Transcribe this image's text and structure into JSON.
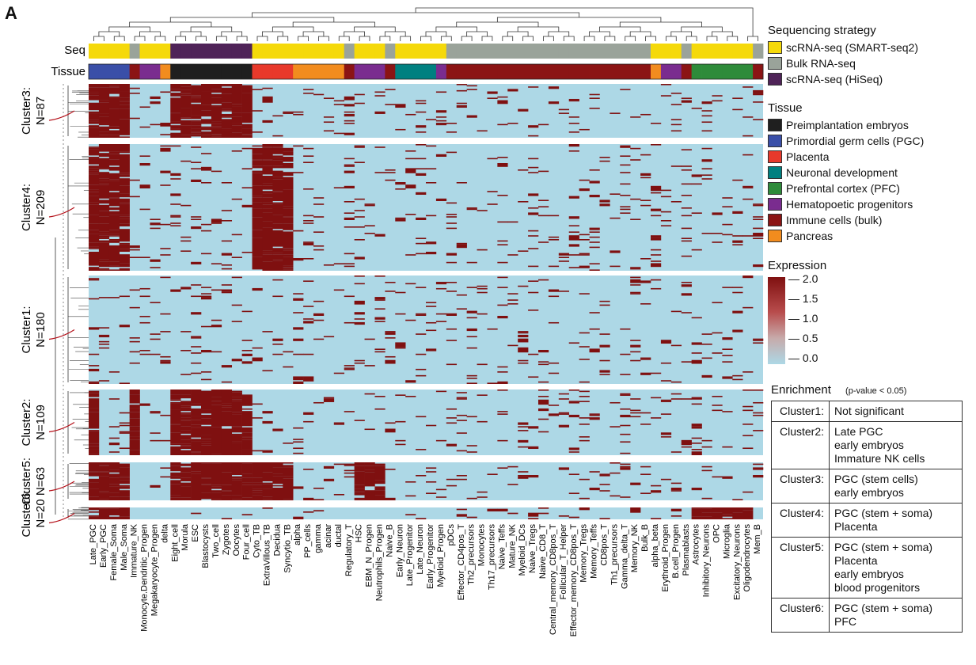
{
  "panel_label": "A",
  "annotation_labels": {
    "seq": "Seq",
    "tissue": "Tissue"
  },
  "colors": {
    "low": "#add8e6",
    "high": "#7f1010",
    "smart": "#f5d90a",
    "bulk": "#9aa39a",
    "hiseq": "#4f2358",
    "preimplantation": "#1f1f1f",
    "pgc": "#3a4fa8",
    "placenta": "#e8392b",
    "neuronal": "#008080",
    "pfc": "#2e8b3a",
    "hemato": "#7a2c8f",
    "immune": "#8b1414",
    "pancreas": "#f28c1e"
  },
  "legend": {
    "seq_title": "Sequencing strategy",
    "seq_items": [
      {
        "label": "scRNA-seq (SMART-seq2)",
        "color": "#f5d90a"
      },
      {
        "label": "Bulk RNA-seq",
        "color": "#9aa39a"
      },
      {
        "label": "scRNA-seq (HiSeq)",
        "color": "#4f2358"
      }
    ],
    "tissue_title": "Tissue",
    "tissue_items": [
      {
        "label": "Preimplantation embryos",
        "color": "#1f1f1f"
      },
      {
        "label": "Primordial germ cells (PGC)",
        "color": "#3a4fa8"
      },
      {
        "label": "Placenta",
        "color": "#e8392b"
      },
      {
        "label": "Neuronal development",
        "color": "#008080"
      },
      {
        "label": "Prefrontal cortex (PFC)",
        "color": "#2e8b3a"
      },
      {
        "label": "Hematopoetic progenitors",
        "color": "#7a2c8f"
      },
      {
        "label": "Immune cells (bulk)",
        "color": "#8b1414"
      },
      {
        "label": "Pancreas",
        "color": "#f28c1e"
      }
    ],
    "expression_title": "Expression",
    "expression_ticks": [
      "2.0",
      "1.5",
      "1.0",
      "0.5",
      "0.0"
    ]
  },
  "enrichment": {
    "title": "Enrichment",
    "subtitle": "(p-value < 0.05)",
    "rows": [
      {
        "cluster": "Cluster1:",
        "lines": [
          "Not significant"
        ]
      },
      {
        "cluster": "Cluster2:",
        "lines": [
          "Late PGC",
          "early embryos",
          "Immature NK cells"
        ]
      },
      {
        "cluster": "Cluster3:",
        "lines": [
          "PGC (stem cells)",
          "early embryos"
        ]
      },
      {
        "cluster": "Cluster4:",
        "lines": [
          "PGC (stem + soma)",
          "Placenta"
        ]
      },
      {
        "cluster": "Cluster5:",
        "lines": [
          "PGC (stem + soma)",
          "Placenta",
          "early embryos",
          "blood progenitors"
        ]
      },
      {
        "cluster": "Cluster6:",
        "lines": [
          "PGC (stem + soma)",
          "PFC"
        ]
      }
    ]
  },
  "chart_data": {
    "type": "heatmap",
    "title": "",
    "value_range": [
      0.0,
      2.0
    ],
    "columns": [
      "Late_PGC",
      "Early_PGC",
      "Female_Soma",
      "Male_Soma",
      "Immature_NK",
      "Monocyte.Dendritic_Progen",
      "Megakaryocyte_Progen",
      "delta",
      "Eight_cell",
      "Morula",
      "ESC",
      "Blastocysts",
      "Two_cell",
      "Zygotes",
      "Oocytes",
      "Four_cell",
      "Cyto_TB",
      "ExtraVillous_TB",
      "Decidua",
      "Syncytio_TB",
      "alpha",
      "PP_cells",
      "gamma",
      "acinar",
      "ductal",
      "Regulatory_T",
      "HSC",
      "EBM_N_Progen",
      "Neutrophils_Progen",
      "Naive_B",
      "Early_Neuron",
      "Late_Progenitor",
      "Late_Neuron",
      "Early_Progenitor",
      "Myeloid_Progen",
      "pDCs",
      "Effector_CD4pos_T",
      "Th2_precursors",
      "Monocytes",
      "Th17_precursors",
      "Naive_Teffs",
      "Mature_NK",
      "Myeloid_DCs",
      "Naive_Tregs",
      "Naive_CD8_T",
      "Central_memory_CD8pos_T",
      "Follicular_T_Helper",
      "Effector_memory_CD8pos_T",
      "Memory_Tregs",
      "Memory_Teffs",
      "CD8pos_T",
      "Th1_precursors",
      "Gamma_delta_T",
      "Memory_NK",
      "Bulk_B",
      "alpha_beta",
      "Erythroid_Progen",
      "B.cell_Progen",
      "Plasmablasts",
      "Astrocytes",
      "Inhibitory_Neurons",
      "OPC",
      "Microglia",
      "Excitatory_Neurons",
      "Oligodendrocytes",
      "Mem_B"
    ],
    "seq_annotation": [
      "scRNA-seq (SMART-seq2)",
      "scRNA-seq (SMART-seq2)",
      "scRNA-seq (SMART-seq2)",
      "scRNA-seq (SMART-seq2)",
      "Bulk RNA-seq",
      "scRNA-seq (SMART-seq2)",
      "scRNA-seq (SMART-seq2)",
      "scRNA-seq (SMART-seq2)",
      "scRNA-seq (HiSeq)",
      "scRNA-seq (HiSeq)",
      "scRNA-seq (HiSeq)",
      "scRNA-seq (HiSeq)",
      "scRNA-seq (HiSeq)",
      "scRNA-seq (HiSeq)",
      "scRNA-seq (HiSeq)",
      "scRNA-seq (HiSeq)",
      "scRNA-seq (SMART-seq2)",
      "scRNA-seq (SMART-seq2)",
      "scRNA-seq (SMART-seq2)",
      "scRNA-seq (SMART-seq2)",
      "scRNA-seq (SMART-seq2)",
      "scRNA-seq (SMART-seq2)",
      "scRNA-seq (SMART-seq2)",
      "scRNA-seq (SMART-seq2)",
      "scRNA-seq (SMART-seq2)",
      "Bulk RNA-seq",
      "scRNA-seq (SMART-seq2)",
      "scRNA-seq (SMART-seq2)",
      "scRNA-seq (SMART-seq2)",
      "Bulk RNA-seq",
      "scRNA-seq (SMART-seq2)",
      "scRNA-seq (SMART-seq2)",
      "scRNA-seq (SMART-seq2)",
      "scRNA-seq (SMART-seq2)",
      "scRNA-seq (SMART-seq2)",
      "Bulk RNA-seq",
      "Bulk RNA-seq",
      "Bulk RNA-seq",
      "Bulk RNA-seq",
      "Bulk RNA-seq",
      "Bulk RNA-seq",
      "Bulk RNA-seq",
      "Bulk RNA-seq",
      "Bulk RNA-seq",
      "Bulk RNA-seq",
      "Bulk RNA-seq",
      "Bulk RNA-seq",
      "Bulk RNA-seq",
      "Bulk RNA-seq",
      "Bulk RNA-seq",
      "Bulk RNA-seq",
      "Bulk RNA-seq",
      "Bulk RNA-seq",
      "Bulk RNA-seq",
      "Bulk RNA-seq",
      "scRNA-seq (SMART-seq2)",
      "scRNA-seq (SMART-seq2)",
      "scRNA-seq (SMART-seq2)",
      "Bulk RNA-seq",
      "scRNA-seq (SMART-seq2)",
      "scRNA-seq (SMART-seq2)",
      "scRNA-seq (SMART-seq2)",
      "scRNA-seq (SMART-seq2)",
      "scRNA-seq (SMART-seq2)",
      "scRNA-seq (SMART-seq2)",
      "Bulk RNA-seq"
    ],
    "tissue_annotation": [
      "Primordial germ cells (PGC)",
      "Primordial germ cells (PGC)",
      "Primordial germ cells (PGC)",
      "Primordial germ cells (PGC)",
      "Immune cells (bulk)",
      "Hematopoetic progenitors",
      "Hematopoetic progenitors",
      "Pancreas",
      "Preimplantation embryos",
      "Preimplantation embryos",
      "Preimplantation embryos",
      "Preimplantation embryos",
      "Preimplantation embryos",
      "Preimplantation embryos",
      "Preimplantation embryos",
      "Preimplantation embryos",
      "Placenta",
      "Placenta",
      "Placenta",
      "Placenta",
      "Pancreas",
      "Pancreas",
      "Pancreas",
      "Pancreas",
      "Pancreas",
      "Immune cells (bulk)",
      "Hematopoetic progenitors",
      "Hematopoetic progenitors",
      "Hematopoetic progenitors",
      "Immune cells (bulk)",
      "Neuronal development",
      "Neuronal development",
      "Neuronal development",
      "Neuronal development",
      "Hematopoetic progenitors",
      "Immune cells (bulk)",
      "Immune cells (bulk)",
      "Immune cells (bulk)",
      "Immune cells (bulk)",
      "Immune cells (bulk)",
      "Immune cells (bulk)",
      "Immune cells (bulk)",
      "Immune cells (bulk)",
      "Immune cells (bulk)",
      "Immune cells (bulk)",
      "Immune cells (bulk)",
      "Immune cells (bulk)",
      "Immune cells (bulk)",
      "Immune cells (bulk)",
      "Immune cells (bulk)",
      "Immune cells (bulk)",
      "Immune cells (bulk)",
      "Immune cells (bulk)",
      "Immune cells (bulk)",
      "Immune cells (bulk)",
      "Pancreas",
      "Hematopoetic progenitors",
      "Hematopoetic progenitors",
      "Immune cells (bulk)",
      "Prefrontal cortex (PFC)",
      "Prefrontal cortex (PFC)",
      "Prefrontal cortex (PFC)",
      "Prefrontal cortex (PFC)",
      "Prefrontal cortex (PFC)",
      "Prefrontal cortex (PFC)",
      "Immune cells (bulk)"
    ],
    "clusters": [
      {
        "name": "Cluster3:",
        "n_label": "N=87",
        "n": 87,
        "high_columns": [
          "Late_PGC",
          "Early_PGC",
          "Female_Soma",
          "Male_Soma",
          "Eight_cell",
          "Morula",
          "ESC",
          "Blastocysts",
          "Two_cell",
          "Zygotes",
          "Oocytes",
          "Four_cell"
        ]
      },
      {
        "name": "Cluster4:",
        "n_label": "N=209",
        "n": 209,
        "high_columns": [
          "Late_PGC",
          "Early_PGC",
          "Female_Soma",
          "Male_Soma",
          "Cyto_TB",
          "ExtraVillous_TB",
          "Decidua",
          "Syncytio_TB"
        ]
      },
      {
        "name": "Cluster1:",
        "n_label": "N=180",
        "n": 180,
        "high_columns": []
      },
      {
        "name": "Cluster2:",
        "n_label": "N=109",
        "n": 109,
        "high_columns": [
          "Late_PGC",
          "Immature_NK",
          "Eight_cell",
          "Morula",
          "ESC",
          "Blastocysts",
          "Two_cell",
          "Zygotes",
          "Oocytes",
          "Four_cell"
        ]
      },
      {
        "name": "Cluster5:",
        "n_label": "N=63",
        "n": 63,
        "high_columns": [
          "Late_PGC",
          "Early_PGC",
          "Female_Soma",
          "Male_Soma",
          "Eight_cell",
          "Morula",
          "ESC",
          "Blastocysts",
          "Two_cell",
          "Zygotes",
          "Oocytes",
          "Four_cell",
          "Cyto_TB",
          "ExtraVillous_TB",
          "Decidua",
          "Syncytio_TB",
          "HSC",
          "EBM_N_Progen",
          "Neutrophils_Progen"
        ]
      },
      {
        "name": "Cluster6:",
        "n_label": "N=20",
        "n": 20,
        "high_columns": [
          "Late_PGC",
          "Early_PGC",
          "Female_Soma",
          "Male_Soma",
          "Astrocytes",
          "Inhibitory_Neurons",
          "OPC",
          "Microglia",
          "Excitatory_Neurons",
          "Oligodendrocytes"
        ]
      }
    ]
  }
}
